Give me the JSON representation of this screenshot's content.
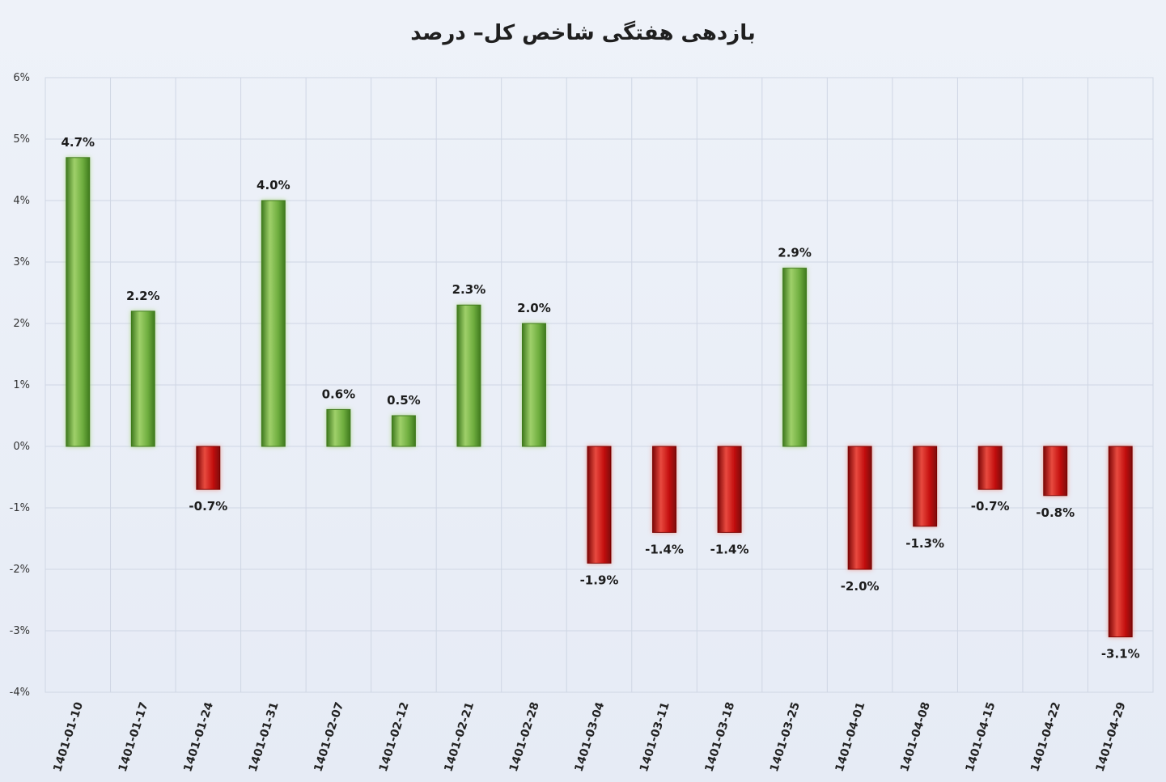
{
  "chart_data": {
    "type": "bar",
    "title": "بازدهی هفتگی شاخص کل– درصد",
    "xlabel": "",
    "ylabel": "",
    "ylim": [
      -4,
      6
    ],
    "yticks": [
      6,
      5,
      4,
      3,
      2,
      1,
      0,
      -1,
      -2,
      -3,
      -4
    ],
    "ytick_labels": [
      "6%",
      "5%",
      "4%",
      "3%",
      "2%",
      "1%",
      "0%",
      "-1%",
      "-2%",
      "-3%",
      "-4%"
    ],
    "grid": true,
    "legend": "none",
    "categories": [
      "1401-01-10",
      "1401-01-17",
      "1401-01-24",
      "1401-01-31",
      "1401-02-07",
      "1401-02-12",
      "1401-02-21",
      "1401-02-28",
      "1401-03-04",
      "1401-03-11",
      "1401-03-18",
      "1401-03-25",
      "1401-04-01",
      "1401-04-08",
      "1401-04-15",
      "1401-04-22",
      "1401-04-29"
    ],
    "values": [
      4.7,
      2.2,
      -0.7,
      4.0,
      0.6,
      0.5,
      2.3,
      2.0,
      -1.9,
      -1.4,
      -1.4,
      2.9,
      -2.0,
      -1.3,
      -0.7,
      -0.8,
      -3.1
    ],
    "data_labels": [
      "4.7%",
      "2.2%",
      "-0.7%",
      "4.0%",
      "0.6%",
      "0.5%",
      "2.3%",
      "2.0%",
      "-1.9%",
      "-1.4%",
      "-1.4%",
      "2.9%",
      "-2.0%",
      "-1.3%",
      "-0.7%",
      "-0.8%",
      "-3.1%"
    ],
    "colors": {
      "positive": "#6fae3f",
      "positive_light": "#9fd06a",
      "positive_dark": "#3f7a1e",
      "negative": "#c4100f",
      "negative_light": "#e84a3f",
      "negative_dark": "#7d0606",
      "grid": "#cfd6e4",
      "background": "#eef2f9"
    }
  }
}
